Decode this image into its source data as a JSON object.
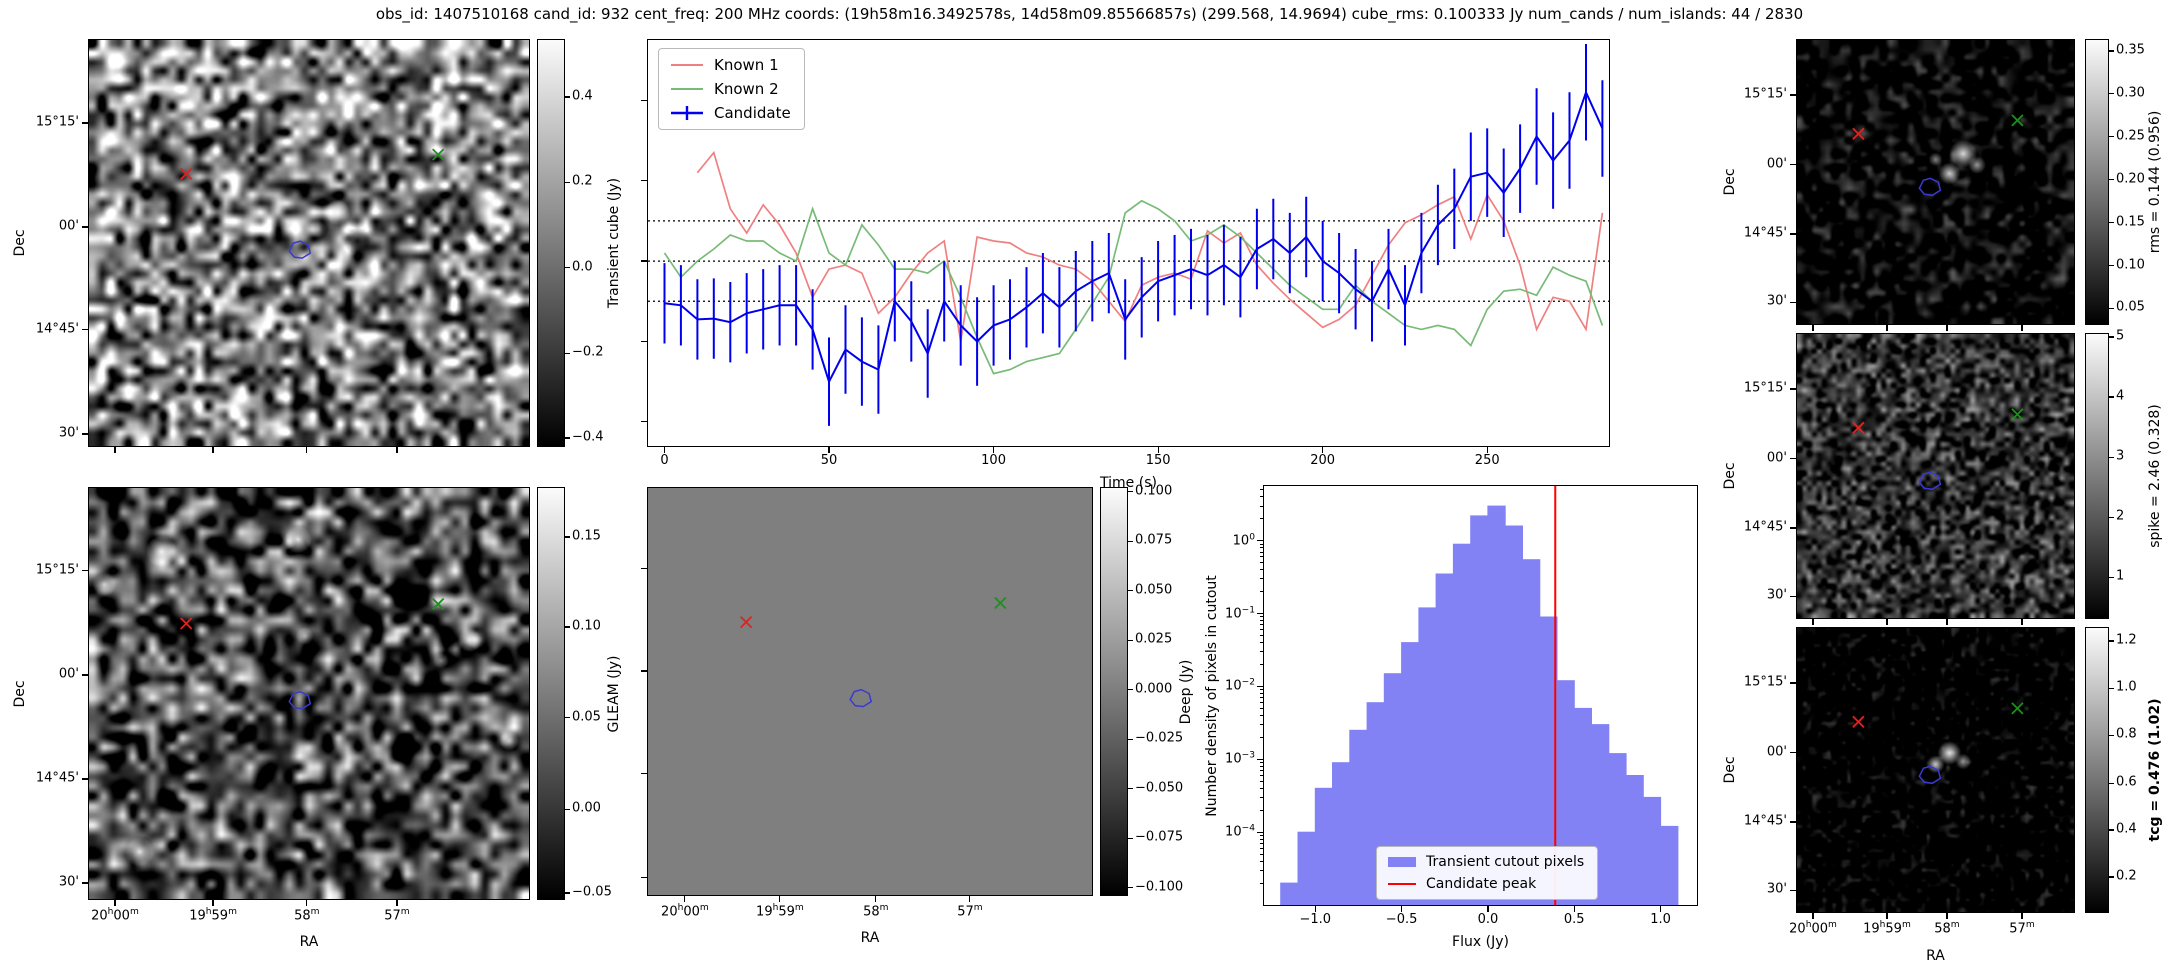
{
  "title": "obs_id: 1407510168 cand_id: 932 cent_freq: 200 MHz coords: (19h58m16.3492578s, 14d58m09.85566857s) (299.568, 14.9694) cube_rms: 0.100333 Jy num_cands / num_islands: 44 / 2830",
  "colors": {
    "known1": "#f08080",
    "known2": "#78bb78",
    "candidate": "#0000ee",
    "candidate_peak": "#ff0000",
    "hist_fill": "#8282f5",
    "marker_red": "#dd2222",
    "marker_green": "#1f8f1f",
    "contour_blue": "#3a3ad0"
  },
  "markers": {
    "known1_x": {
      "color_key": "marker_red",
      "fx": 0.22,
      "fy": 0.328
    },
    "known2_x": {
      "color_key": "marker_green",
      "fx": 0.79,
      "fy": 0.281
    },
    "candidate_contour": {
      "color_key": "contour_blue",
      "fx": 0.478,
      "fy": 0.515
    }
  },
  "sky_panels": {
    "transient_cube": {
      "ylabel": "Dec",
      "dec_ticks": [
        "15°15'",
        "00'",
        "14°45'",
        "30'"
      ],
      "colorbar_label": "Transient cube (Jy)",
      "colorbar_ticks": [
        "0.4",
        "0.2",
        "0.0",
        "−0.2",
        "−0.4"
      ]
    },
    "gleam": {
      "ylabel": "Dec",
      "xlabel": "RA",
      "dec_ticks": [
        "15°15'",
        "00'",
        "14°45'",
        "30'"
      ],
      "ra_ticks": [
        "20h00m",
        "19h59m",
        "58m",
        "57m"
      ],
      "colorbar_label": "GLEAM (Jy)",
      "colorbar_ticks": [
        "0.15",
        "0.10",
        "0.05",
        "0.00",
        "−0.05"
      ]
    },
    "deep": {
      "xlabel": "RA",
      "ra_ticks": [
        "20h00m",
        "19h59m",
        "58m",
        "57m"
      ],
      "colorbar_label": "Deep (Jy)",
      "colorbar_ticks": [
        "0.100",
        "0.075",
        "0.050",
        "0.025",
        "0.000",
        "−0.025",
        "−0.050",
        "−0.075",
        "−0.100"
      ]
    },
    "rms": {
      "ylabel": "Dec",
      "dec_ticks": [
        "15°15'",
        "00'",
        "14°45'",
        "30'"
      ],
      "colorbar_label": "rms = 0.144 (0.956)",
      "colorbar_ticks": [
        "0.35",
        "0.30",
        "0.25",
        "0.20",
        "0.15",
        "0.10",
        "0.05"
      ]
    },
    "spike": {
      "ylabel": "Dec",
      "dec_ticks": [
        "15°15'",
        "00'",
        "14°45'",
        "30'"
      ],
      "colorbar_label": "spike = 2.46 (0.328)",
      "colorbar_ticks": [
        "5",
        "4",
        "3",
        "2",
        "1"
      ]
    },
    "tcg": {
      "ylabel": "Dec",
      "xlabel": "RA",
      "dec_ticks": [
        "15°15'",
        "00'",
        "14°45'",
        "30'"
      ],
      "ra_ticks": [
        "20h00m",
        "19h59m",
        "58m",
        "57m"
      ],
      "colorbar_label": "tcg = 0.476 (1.02)",
      "colorbar_label_bold": true,
      "colorbar_ticks": [
        "1.2",
        "1.0",
        "0.8",
        "0.6",
        "0.4",
        "0.2"
      ]
    }
  },
  "chart_data": [
    {
      "type": "line",
      "title": "",
      "xlabel": "Time (s)",
      "ylabel": "",
      "x_ticks": [
        0,
        50,
        100,
        150,
        200,
        250
      ],
      "xlim": [
        -5,
        287
      ],
      "ylim": [
        -0.46,
        0.55
      ],
      "hlines": [
        0.1,
        0.0,
        -0.1
      ],
      "y_axis_ticks": [
        0.4,
        0.2,
        0.0,
        -0.2,
        -0.4
      ],
      "legend_position": "upper left",
      "x": [
        0,
        5,
        10,
        15,
        20,
        25,
        30,
        35,
        40,
        45,
        50,
        55,
        60,
        65,
        70,
        75,
        80,
        85,
        90,
        95,
        100,
        105,
        110,
        115,
        120,
        125,
        130,
        135,
        140,
        145,
        150,
        155,
        160,
        165,
        170,
        175,
        180,
        185,
        190,
        195,
        200,
        205,
        210,
        215,
        220,
        225,
        230,
        235,
        240,
        245,
        250,
        255,
        260,
        265,
        270,
        275,
        280,
        285
      ],
      "series": [
        {
          "name": "Known 1",
          "color_key": "known1",
          "values": [
            null,
            null,
            0.22,
            0.27,
            0.13,
            0.07,
            0.14,
            0.09,
            0.02,
            -0.09,
            -0.02,
            -0.01,
            -0.03,
            -0.13,
            -0.09,
            -0.03,
            0.02,
            0.05,
            -0.2,
            0.06,
            0.05,
            0.045,
            0.02,
            0.01,
            -0.01,
            -0.02,
            -0.05,
            -0.1,
            -0.15,
            -0.06,
            -0.04,
            -0.03,
            -0.045,
            0.075,
            0.045,
            0.07,
            -0.01,
            -0.055,
            -0.095,
            -0.13,
            -0.165,
            -0.145,
            -0.11,
            -0.035,
            0.04,
            0.095,
            0.115,
            0.14,
            0.16,
            0.055,
            0.165,
            0.1,
            -0.01,
            -0.17,
            -0.09,
            -0.1,
            -0.17,
            0.12
          ]
        },
        {
          "name": "Known 2",
          "color_key": "known2",
          "values": [
            0.02,
            -0.04,
            0.0,
            0.03,
            0.065,
            0.05,
            0.05,
            0.02,
            0.0,
            0.13,
            0.02,
            -0.01,
            0.09,
            0.04,
            -0.02,
            -0.02,
            -0.03,
            0.0,
            -0.09,
            -0.19,
            -0.28,
            -0.27,
            -0.25,
            -0.24,
            -0.23,
            -0.17,
            -0.105,
            -0.04,
            0.12,
            0.15,
            0.13,
            0.1,
            0.05,
            0.065,
            0.09,
            0.06,
            0.02,
            -0.02,
            -0.06,
            -0.09,
            -0.12,
            -0.12,
            -0.06,
            -0.1,
            -0.13,
            -0.16,
            -0.17,
            -0.16,
            -0.17,
            -0.21,
            -0.12,
            -0.075,
            -0.07,
            -0.085,
            -0.015,
            -0.035,
            -0.05,
            -0.16
          ]
        },
        {
          "name": "Candidate",
          "color_key": "candidate",
          "values": [
            -0.105,
            -0.11,
            -0.145,
            -0.143,
            -0.152,
            -0.13,
            -0.12,
            -0.11,
            -0.11,
            -0.17,
            -0.3,
            -0.22,
            -0.25,
            -0.27,
            -0.1,
            -0.15,
            -0.23,
            -0.1,
            -0.16,
            -0.2,
            -0.16,
            -0.145,
            -0.115,
            -0.08,
            -0.115,
            -0.075,
            -0.05,
            -0.03,
            -0.145,
            -0.09,
            -0.05,
            -0.035,
            -0.02,
            -0.035,
            -0.01,
            -0.04,
            0.03,
            0.055,
            0.02,
            0.06,
            0.0,
            -0.03,
            -0.07,
            -0.1,
            -0.02,
            -0.11,
            0.02,
            0.09,
            0.13,
            0.21,
            0.22,
            0.17,
            0.23,
            0.31,
            0.25,
            0.3,
            0.42,
            0.33
          ],
          "errors": [
            0.1,
            0.1,
            0.1,
            0.1,
            0.1,
            0.1,
            0.1,
            0.1,
            0.1,
            0.1,
            0.11,
            0.11,
            0.11,
            0.11,
            0.1,
            0.1,
            0.11,
            0.1,
            0.1,
            0.11,
            0.1,
            0.1,
            0.1,
            0.1,
            0.1,
            0.1,
            0.1,
            0.1,
            0.1,
            0.1,
            0.1,
            0.1,
            0.1,
            0.1,
            0.1,
            0.1,
            0.1,
            0.1,
            0.1,
            0.1,
            0.1,
            0.1,
            0.1,
            0.1,
            0.1,
            0.1,
            0.1,
            0.1,
            0.1,
            0.11,
            0.11,
            0.11,
            0.11,
            0.12,
            0.12,
            0.12,
            0.12,
            0.12
          ]
        }
      ],
      "legend": [
        "Known 1",
        "Known 2",
        "Candidate"
      ]
    },
    {
      "type": "histogram",
      "xlabel": "Flux (Jy)",
      "ylabel": "Number density of pixels in cutout",
      "x_ticks": [
        "−1.0",
        "−0.5",
        "0.0",
        "0.5",
        "1.0"
      ],
      "x_tick_values": [
        -1.0,
        -0.5,
        0.0,
        0.5,
        1.0
      ],
      "y_tick_exponents": [
        "0",
        "−1",
        "−2",
        "−3",
        "−4"
      ],
      "xlim": [
        -1.297,
        1.211
      ],
      "ylim": [
        1e-05,
        5.66
      ],
      "yscale": "log",
      "bin_width": 0.1,
      "bin_centers": [
        -1.15,
        -1.05,
        -0.95,
        -0.85,
        -0.75,
        -0.65,
        -0.55,
        -0.45,
        -0.35,
        -0.25,
        -0.15,
        -0.05,
        0.05,
        0.15,
        0.25,
        0.35,
        0.45,
        0.55,
        0.65,
        0.75,
        0.85,
        0.95,
        1.05
      ],
      "densities": [
        2e-05,
        0.0001,
        0.0004,
        0.0009,
        0.0025,
        0.006,
        0.015,
        0.04,
        0.12,
        0.35,
        0.9,
        2.2,
        3.0,
        1.6,
        0.55,
        0.09,
        0.012,
        0.005,
        0.003,
        0.0012,
        0.0006,
        0.0003,
        0.00012
      ],
      "candidate_peak_flux": 0.39,
      "legend": [
        "Transient cutout pixels",
        "Candidate peak"
      ],
      "legend_position": "lower center"
    }
  ]
}
